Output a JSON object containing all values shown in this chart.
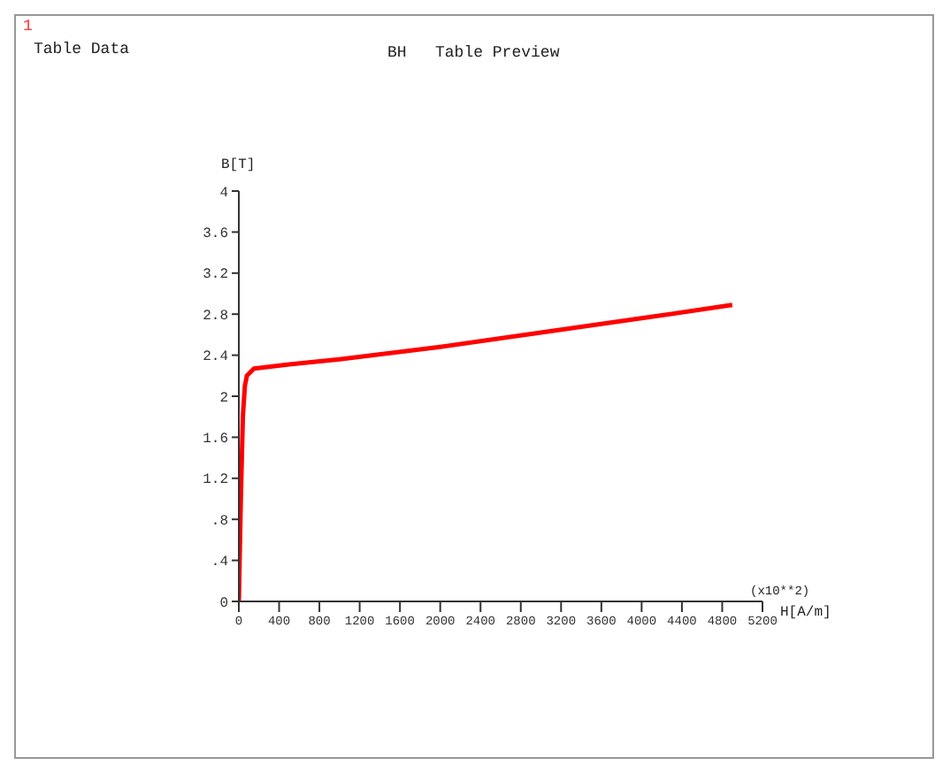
{
  "chart_data": {
    "type": "line",
    "title": "BH   Table Preview",
    "xlabel": "H[A/m]",
    "ylabel": "B[T]",
    "annotations": [
      "1",
      "Table Data",
      "(x10**2)"
    ],
    "x": [
      0,
      20,
      40,
      60,
      80,
      150,
      500,
      1000,
      2000,
      3000,
      4000,
      4900
    ],
    "series": [
      {
        "color": "#ff0000",
        "values": [
          0,
          1.0,
          1.8,
          2.1,
          2.2,
          2.27,
          2.31,
          2.36,
          2.48,
          2.62,
          2.76,
          2.89
        ]
      }
    ],
    "xlim": [
      0,
      5200
    ],
    "xticks": [
      0,
      400,
      800,
      1200,
      1600,
      2000,
      2400,
      2800,
      3200,
      3600,
      4000,
      4400,
      4800,
      5200
    ],
    "ylim": [
      0,
      4
    ],
    "yticks": [
      0,
      {
        "value": 0.4,
        "label": ".4"
      },
      {
        "value": 0.8,
        "label": ".8"
      },
      1.2,
      1.6,
      2,
      2.4,
      2.8,
      3.2,
      3.6,
      4
    ],
    "grid": false,
    "marker": "none",
    "line_style": "solid"
  }
}
